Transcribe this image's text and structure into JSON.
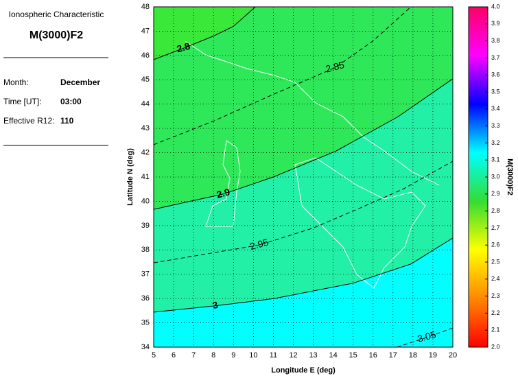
{
  "panel": {
    "heading": "Ionospheric Characteristic",
    "characteristic": "M(3000)F2",
    "rows": [
      [
        "Month:",
        "December"
      ],
      [
        "Time [UT]:",
        "03:00"
      ],
      [
        "Effective R12:",
        "110"
      ]
    ]
  },
  "chart_data": {
    "type": "contour",
    "xlabel": "Longitude E (deg)",
    "ylabel": "Latitude N (deg)",
    "xlim": [
      5,
      20
    ],
    "ylim": [
      34,
      48
    ],
    "xticks": [
      5,
      6,
      7,
      8,
      9,
      10,
      11,
      12,
      13,
      14,
      15,
      16,
      17,
      18,
      19,
      20
    ],
    "yticks": [
      34,
      35,
      36,
      37,
      38,
      39,
      40,
      41,
      42,
      43,
      44,
      45,
      46,
      47,
      48
    ],
    "grid": true,
    "background": "#3ae83a",
    "series": [
      {
        "name": "2.8",
        "dashed": false,
        "fill_below": "#2ee85a",
        "x": [
          5,
          6.5,
          8,
          9,
          10.1
        ],
        "y": [
          45.83,
          46.3,
          46.8,
          47.2,
          48
        ]
      },
      {
        "name": "2.85",
        "dashed": true,
        "x": [
          5,
          8,
          11,
          14.1,
          16,
          17.9
        ],
        "y": [
          42.33,
          43.3,
          44.4,
          45.5,
          46.6,
          48
        ]
      },
      {
        "name": "2.9",
        "dashed": false,
        "fill_below": "#22f0a6",
        "x": [
          5,
          8.5,
          11,
          14.15,
          17.25,
          20
        ],
        "y": [
          39.67,
          40.3,
          41.0,
          42.07,
          43.48,
          45.04
        ]
      },
      {
        "name": "2.95",
        "dashed": true,
        "x": [
          5,
          10.3,
          13,
          15.2,
          17.5,
          20
        ],
        "y": [
          37.47,
          38.2,
          38.9,
          39.67,
          40.5,
          41.65
        ]
      },
      {
        "name": "3",
        "dashed": false,
        "fill_below": "#00ffff",
        "x": [
          5,
          8.1,
          11.05,
          15,
          17.9,
          20
        ],
        "y": [
          35.44,
          35.7,
          36.0,
          36.63,
          37.42,
          38.49
        ]
      },
      {
        "name": "3.05",
        "dashed": true,
        "x": [
          17.2,
          18.7,
          20
        ],
        "y": [
          34,
          34.4,
          34.79
        ]
      }
    ],
    "colorbar": {
      "label": "M(3000)F2",
      "lim": [
        2,
        4
      ],
      "colors": [
        "#ff0000",
        "#ff8800",
        "#ffff00",
        "#33dd33",
        "#00ffff",
        "#0000ff",
        "#ff00ff",
        "#ff0066"
      ],
      "ticks": [
        {
          "value": 2,
          "label": "2.0"
        },
        2.1,
        2.2,
        2.3,
        2.4,
        2.5,
        2.6,
        2.7,
        2.8,
        2.9,
        {
          "value": 3,
          "label": "3.0"
        },
        3.1,
        3.2,
        3.3,
        3.4,
        3.5,
        3.6,
        3.7,
        3.8,
        3.9,
        {
          "value": 4,
          "label": "4.0"
        }
      ]
    }
  }
}
